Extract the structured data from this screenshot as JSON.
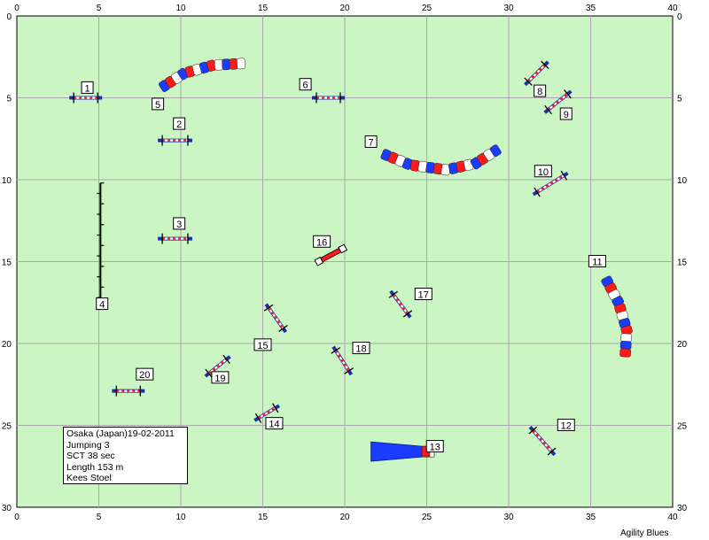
{
  "axis": {
    "x_ticks": [
      "0",
      "5",
      "10",
      "15",
      "20",
      "25",
      "30",
      "35",
      "40"
    ],
    "y_ticks": [
      "0",
      "5",
      "10",
      "15",
      "20",
      "25",
      "30"
    ],
    "x_range": [
      0,
      40
    ],
    "y_range": [
      0,
      30
    ]
  },
  "colors": {
    "field": "#ccf5c4",
    "grid": "#a8a8a8",
    "tunnel_red": "#ff1a1a",
    "tunnel_blue": "#1a3cff",
    "bar_blue": "#1c2ea8"
  },
  "obstacles": [
    {
      "num": "1",
      "type": "jump",
      "x1": 3.2,
      "y1": 5.0,
      "x2": 5.2,
      "y2": 5.0,
      "lx": 4.3,
      "ly": 4.4
    },
    {
      "num": "2",
      "type": "jump",
      "x1": 8.6,
      "y1": 7.6,
      "x2": 10.7,
      "y2": 7.6,
      "lx": 9.9,
      "ly": 6.6
    },
    {
      "num": "3",
      "type": "jump",
      "x1": 8.6,
      "y1": 13.6,
      "x2": 10.7,
      "y2": 13.6,
      "lx": 9.9,
      "ly": 12.7
    },
    {
      "num": "4",
      "type": "weave",
      "x": 5.1,
      "y1": 10.2,
      "y2": 17.2,
      "poles": 12,
      "lx": 5.2,
      "ly": 17.6
    },
    {
      "num": "5",
      "type": "tunnel",
      "points": [
        [
          8.8,
          4.4
        ],
        [
          10.2,
          3.5
        ],
        [
          12.0,
          3.0
        ],
        [
          13.9,
          2.9
        ]
      ],
      "lx": 8.6,
      "ly": 5.4
    },
    {
      "num": "6",
      "type": "jump",
      "x1": 18.0,
      "y1": 5.0,
      "x2": 20.0,
      "y2": 5.0,
      "lx": 17.6,
      "ly": 4.2
    },
    {
      "num": "7",
      "type": "tunnel",
      "points": [
        [
          22.3,
          8.4
        ],
        [
          24.0,
          9.1
        ],
        [
          26.2,
          9.4
        ],
        [
          28.0,
          9.0
        ],
        [
          29.4,
          8.1
        ]
      ],
      "lx": 21.6,
      "ly": 7.7
    },
    {
      "num": "8",
      "type": "jump",
      "x1": 31.0,
      "y1": 4.2,
      "x2": 32.4,
      "y2": 2.8,
      "lx": 31.9,
      "ly": 4.6
    },
    {
      "num": "9",
      "type": "jump",
      "x1": 32.2,
      "y1": 5.9,
      "x2": 33.8,
      "y2": 4.6,
      "lx": 33.5,
      "ly": 6.0
    },
    {
      "num": "10",
      "type": "jump",
      "x1": 31.5,
      "y1": 10.9,
      "x2": 33.6,
      "y2": 9.6,
      "lx": 32.1,
      "ly": 9.5
    },
    {
      "num": "11",
      "type": "tunnel",
      "points": [
        [
          35.9,
          16.0
        ],
        [
          36.7,
          17.5
        ],
        [
          37.2,
          19.2
        ],
        [
          37.1,
          20.8
        ]
      ],
      "lx": 35.4,
      "ly": 15.0
    },
    {
      "num": "12",
      "type": "jump",
      "x1": 31.3,
      "y1": 25.1,
      "x2": 32.8,
      "y2": 26.8,
      "lx": 33.5,
      "ly": 25.0
    },
    {
      "num": "13",
      "type": "chute",
      "x1": 21.6,
      "x2": 24.7,
      "y": 26.6,
      "lx": 25.5,
      "ly": 26.3
    },
    {
      "num": "14",
      "type": "jump",
      "x1": 14.5,
      "y1": 24.7,
      "x2": 16.0,
      "y2": 23.8,
      "lx": 15.7,
      "ly": 24.9
    },
    {
      "num": "15",
      "type": "jump",
      "x1": 15.2,
      "y1": 17.6,
      "x2": 16.4,
      "y2": 19.3,
      "lx": 15.0,
      "ly": 20.1
    },
    {
      "num": "16",
      "type": "tire",
      "x1": 18.4,
      "y1": 15.0,
      "x2": 19.9,
      "y2": 14.2,
      "lx": 18.6,
      "ly": 13.8
    },
    {
      "num": "17",
      "type": "jump",
      "x1": 22.8,
      "y1": 16.8,
      "x2": 24.0,
      "y2": 18.4,
      "lx": 24.8,
      "ly": 17.0
    },
    {
      "num": "18",
      "type": "jump",
      "x1": 19.3,
      "y1": 20.2,
      "x2": 20.4,
      "y2": 21.9,
      "lx": 21.0,
      "ly": 20.3
    },
    {
      "num": "19",
      "type": "jump",
      "x1": 11.5,
      "y1": 22.0,
      "x2": 13.0,
      "y2": 20.8,
      "lx": 12.4,
      "ly": 22.1
    },
    {
      "num": "20",
      "type": "jump",
      "x1": 5.8,
      "y1": 22.9,
      "x2": 7.8,
      "y2": 22.9,
      "lx": 7.8,
      "ly": 21.9
    }
  ],
  "info": {
    "line1": "Osaka (Japan)19-02-2011",
    "line2": "Jumping 3",
    "line3": "SCT 38 sec",
    "line4": "Length 153 m",
    "line5": "Kees Stoel"
  },
  "brand": "Agility Blues"
}
